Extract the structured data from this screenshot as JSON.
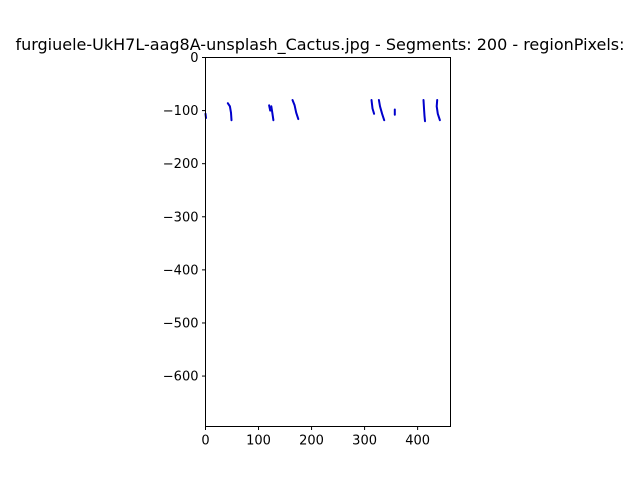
{
  "chart_data": {
    "type": "line",
    "title": "furgiuele-UkH7L-aag8A-unsplash_Cactus.jpg - Segments: 200 - regionPixels:",
    "xlabel": "",
    "ylabel": "",
    "xlim": [
      0,
      462
    ],
    "ylim": [
      -695,
      0
    ],
    "x_ticks": [
      0,
      100,
      200,
      300,
      400
    ],
    "y_ticks": [
      0,
      -100,
      -200,
      -300,
      -400,
      -500,
      -600
    ],
    "x_tick_labels": [
      "0",
      "100",
      "200",
      "300",
      "400"
    ],
    "y_tick_labels": [
      "0",
      "−100",
      "−200",
      "−300",
      "−400",
      "−500",
      "−600"
    ],
    "grid": false,
    "line_color": "#0000cc",
    "series": [
      {
        "points": [
          [
            0,
            -106
          ],
          [
            1,
            -114
          ]
        ]
      },
      {
        "points": [
          [
            42,
            -86
          ],
          [
            46,
            -92
          ],
          [
            48,
            -104
          ],
          [
            49,
            -118
          ]
        ]
      },
      {
        "points": [
          [
            120,
            -90
          ],
          [
            122,
            -100
          ]
        ]
      },
      {
        "points": [
          [
            124,
            -92
          ],
          [
            126,
            -104
          ],
          [
            128,
            -118
          ]
        ]
      },
      {
        "points": [
          [
            164,
            -80
          ],
          [
            168,
            -90
          ],
          [
            171,
            -104
          ],
          [
            175,
            -116
          ]
        ]
      },
      {
        "points": [
          [
            313,
            -80
          ],
          [
            315,
            -96
          ],
          [
            318,
            -106
          ]
        ]
      },
      {
        "points": [
          [
            327,
            -80
          ],
          [
            329,
            -92
          ],
          [
            333,
            -106
          ],
          [
            337,
            -118
          ]
        ]
      },
      {
        "points": [
          [
            357,
            -98
          ],
          [
            357,
            -108
          ]
        ]
      },
      {
        "points": [
          [
            411,
            -80
          ],
          [
            412,
            -96
          ],
          [
            413,
            -110
          ],
          [
            414,
            -120
          ]
        ]
      },
      {
        "points": [
          [
            437,
            -80
          ],
          [
            436,
            -92
          ],
          [
            438,
            -106
          ],
          [
            442,
            -118
          ]
        ]
      }
    ]
  }
}
